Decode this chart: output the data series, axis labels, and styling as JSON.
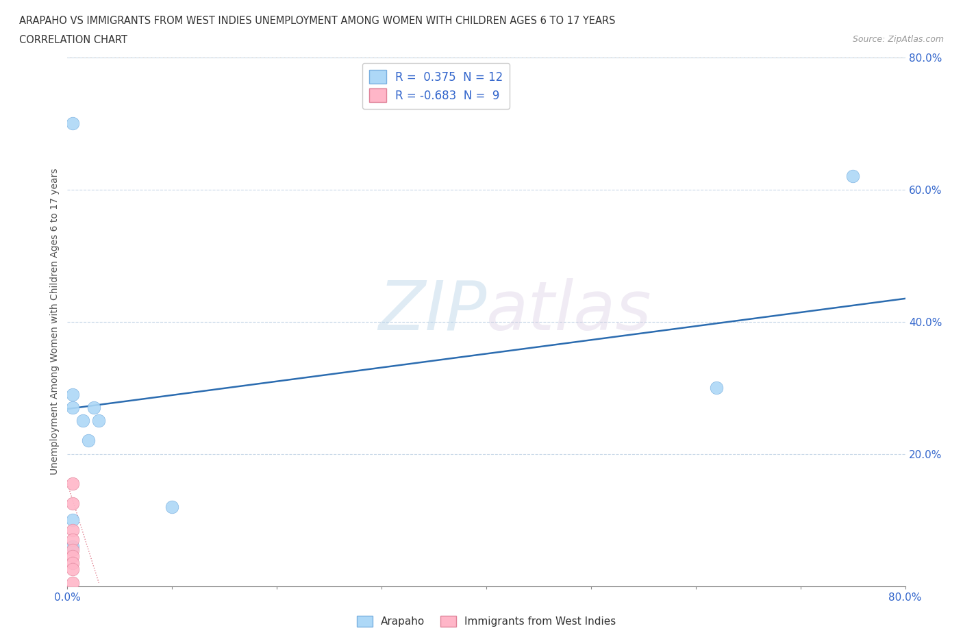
{
  "title_line1": "ARAPAHO VS IMMIGRANTS FROM WEST INDIES UNEMPLOYMENT AMONG WOMEN WITH CHILDREN AGES 6 TO 17 YEARS",
  "title_line2": "CORRELATION CHART",
  "source_text": "Source: ZipAtlas.com",
  "ylabel": "Unemployment Among Women with Children Ages 6 to 17 years",
  "xlim": [
    0.0,
    0.8
  ],
  "ylim": [
    0.0,
    0.8
  ],
  "xtick_vals": [
    0.0,
    0.1,
    0.2,
    0.3,
    0.4,
    0.5,
    0.6,
    0.7,
    0.8
  ],
  "xtick_show": [
    0.0,
    0.8
  ],
  "xtick_labels_show": [
    "0.0%",
    "80.0%"
  ],
  "ytick_vals": [
    0.2,
    0.4,
    0.6,
    0.8
  ],
  "ytick_labels": [
    "20.0%",
    "40.0%",
    "60.0%",
    "80.0%"
  ],
  "arapaho_x": [
    0.005,
    0.005,
    0.015,
    0.02,
    0.025,
    0.03,
    0.1,
    0.75,
    0.62,
    0.005,
    0.005,
    0.005
  ],
  "arapaho_y": [
    0.7,
    0.27,
    0.25,
    0.22,
    0.27,
    0.25,
    0.12,
    0.62,
    0.3,
    0.29,
    0.1,
    0.06
  ],
  "west_indies_x": [
    0.005,
    0.005,
    0.005,
    0.005,
    0.005,
    0.005,
    0.005,
    0.005,
    0.005
  ],
  "west_indies_y": [
    0.155,
    0.125,
    0.085,
    0.07,
    0.055,
    0.045,
    0.035,
    0.025,
    0.005
  ],
  "arapaho_color": "#add8f7",
  "west_indies_color": "#ffb6c8",
  "arapaho_edge_color": "#7ab0e0",
  "west_indies_edge_color": "#e0849a",
  "line_color": "#2b6cb0",
  "line_x_start": 0.0,
  "line_x_end": 0.8,
  "line_y_start": 0.268,
  "line_y_end": 0.435,
  "wi_line_color": "#e08090",
  "wi_line_style": "dotted",
  "wi_line_x_start": 0.0,
  "wi_line_x_end": 0.03,
  "wi_line_y_start": 0.155,
  "wi_line_y_end": 0.005,
  "r_arapaho": "0.375",
  "n_arapaho": "12",
  "r_west_indies": "-0.683",
  "n_west_indies": "9",
  "watermark_zip": "ZIP",
  "watermark_atlas": "atlas",
  "grid_color": "#c8d8e8",
  "marker_size": 180,
  "bg_color": "#ffffff",
  "top_line_y": 0.8
}
